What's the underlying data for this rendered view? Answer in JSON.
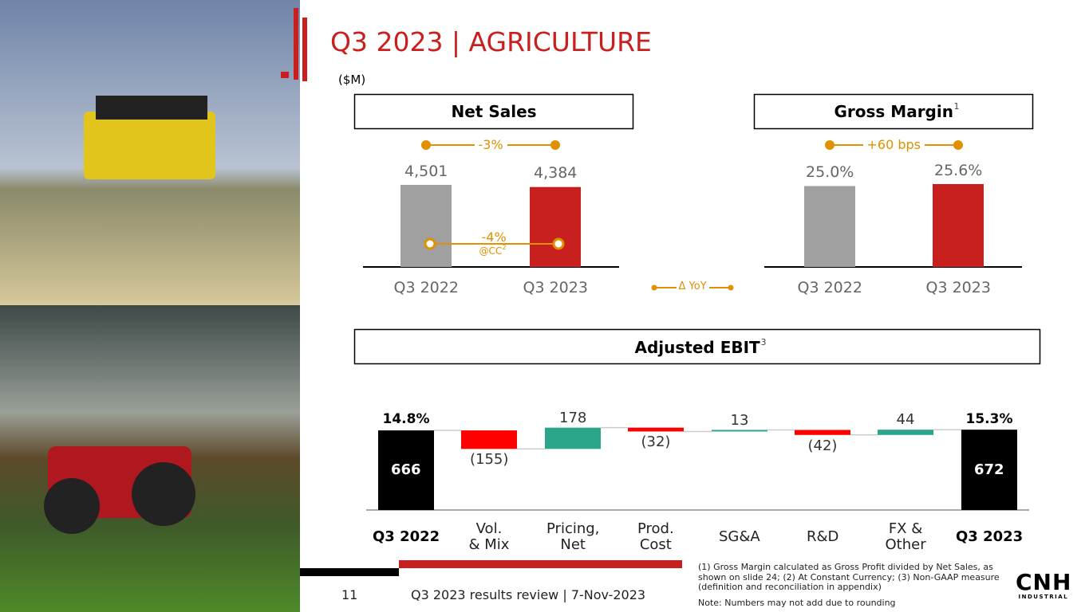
{
  "header": {
    "title": "Q3 2023 | AGRICULTURE",
    "unit": "($M)"
  },
  "chart_data": [
    {
      "type": "bar",
      "title": "Net Sales",
      "categories": [
        "Q3 2022",
        "Q3 2023"
      ],
      "values": [
        4501,
        4384
      ],
      "value_labels": [
        "4,501",
        "4,384"
      ],
      "colors": [
        "#a0a0a0",
        "#c8201e"
      ],
      "annotations": {
        "change": "-3%",
        "change_cc": "-4%",
        "cc_note": "@CC",
        "cc_note_sup": "2"
      }
    },
    {
      "type": "bar",
      "title": "Gross Margin",
      "title_sup": "1",
      "categories": [
        "Q3 2022",
        "Q3 2023"
      ],
      "values": [
        25.0,
        25.6
      ],
      "value_labels": [
        "25.0%",
        "25.6%"
      ],
      "colors": [
        "#a0a0a0",
        "#c8201e"
      ],
      "annotations": {
        "change": "+60 bps"
      }
    },
    {
      "type": "waterfall",
      "title": "Adjusted EBIT",
      "title_sup": "3",
      "categories": [
        "Q3 2022",
        "Vol.\n& Mix",
        "Pricing,\nNet",
        "Prod.\nCost",
        "SG&A",
        "R&D",
        "FX &\nOther",
        "Q3 2023"
      ],
      "values": [
        666,
        -155,
        178,
        -32,
        13,
        -42,
        44,
        672
      ],
      "value_labels": [
        "666",
        "(155)",
        "178",
        "(32)",
        "13",
        "(42)",
        "44",
        "672"
      ],
      "start_margin": "14.8%",
      "end_margin": "15.3%",
      "colors": {
        "total": "#000000",
        "increase": "#2aa58a",
        "decrease": "#ff0000"
      }
    }
  ],
  "legend": {
    "yoy": "Δ YoY"
  },
  "footer": {
    "page": "11",
    "review": "Q3 2023 results review | 7-Nov-2023",
    "notes": "(1) Gross Margin calculated as Gross Profit divided by Net Sales, as shown on slide 24; (2) At Constant Currency; (3) Non-GAAP measure (definition and reconciliation in appendix)",
    "rounding": "Note: Numbers may not add due to rounding",
    "logo": "CNH",
    "logo_sub": "INDUSTRIAL"
  }
}
